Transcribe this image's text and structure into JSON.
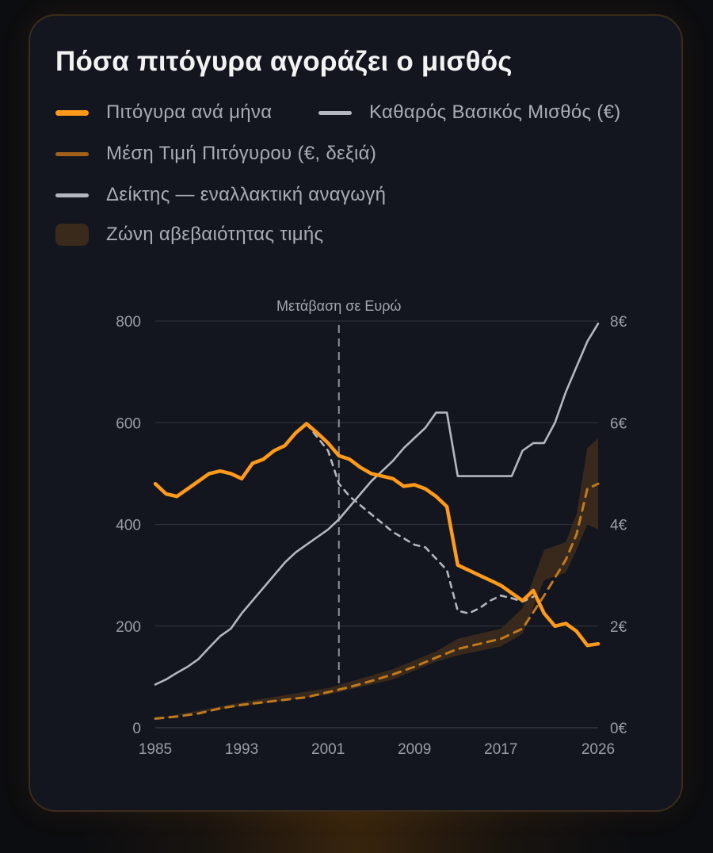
{
  "title": "Πόσα πιτόγυρα αγοράζει ο μισθός",
  "legend": {
    "pitogyra": "Πιτόγυρα ανά μήνα",
    "salary": "Καθαρός Βασικός Μισθός (€)",
    "price": "Μέση Τιμή Πιτόγυρου (€, δεξιά)",
    "alt": "Δείκτης — εναλλακτική αναγωγή",
    "band": "Ζώνη αβεβαιότητας τιμής"
  },
  "colors": {
    "accent": "#ff9a1a",
    "price": "#c07a1e",
    "grey": "#b4b7bd",
    "band": "#3a2a1c",
    "background": "#13161f"
  },
  "chart_data": {
    "type": "line",
    "x_ticks": [
      "1985",
      "1993",
      "2001",
      "2009",
      "2017",
      "2026"
    ],
    "xlim": [
      1985,
      2026
    ],
    "y_left_ticks": [
      "0",
      "200",
      "400",
      "600",
      "800"
    ],
    "ylim_left": [
      0,
      800
    ],
    "y_right_ticks": [
      "0€",
      "2€",
      "4€",
      "6€",
      "8€"
    ],
    "ylim_right": [
      0,
      8
    ],
    "annotation": {
      "label": "Μετάβαση σε Ευρώ",
      "x": 2002
    },
    "grid": true,
    "series": [
      {
        "name": "Πιτόγυρα ανά μήνα",
        "axis": "left",
        "style": "solid",
        "points": [
          [
            1985,
            480
          ],
          [
            1986,
            460
          ],
          [
            1987,
            455
          ],
          [
            1988,
            470
          ],
          [
            1989,
            485
          ],
          [
            1990,
            500
          ],
          [
            1991,
            505
          ],
          [
            1992,
            500
          ],
          [
            1993,
            490
          ],
          [
            1994,
            520
          ],
          [
            1995,
            528
          ],
          [
            1996,
            545
          ],
          [
            1997,
            555
          ],
          [
            1998,
            580
          ],
          [
            1999,
            598
          ],
          [
            2000,
            580
          ],
          [
            2001,
            560
          ],
          [
            2002,
            535
          ],
          [
            2003,
            528
          ],
          [
            2004,
            512
          ],
          [
            2005,
            500
          ],
          [
            2006,
            495
          ],
          [
            2007,
            490
          ],
          [
            2008,
            475
          ],
          [
            2009,
            478
          ],
          [
            2010,
            470
          ],
          [
            2011,
            455
          ],
          [
            2012,
            435
          ],
          [
            2013,
            320
          ],
          [
            2014,
            310
          ],
          [
            2015,
            300
          ],
          [
            2016,
            290
          ],
          [
            2017,
            280
          ],
          [
            2018,
            265
          ],
          [
            2019,
            250
          ],
          [
            2020,
            270
          ],
          [
            2021,
            225
          ],
          [
            2022,
            200
          ],
          [
            2023,
            205
          ],
          [
            2024,
            190
          ],
          [
            2025,
            162
          ],
          [
            2026,
            165
          ]
        ]
      },
      {
        "name": "Καθαρός Βασικός Μισθός (€)",
        "axis": "left",
        "style": "solid",
        "points": [
          [
            1985,
            85
          ],
          [
            1986,
            95
          ],
          [
            1987,
            108
          ],
          [
            1988,
            120
          ],
          [
            1989,
            135
          ],
          [
            1990,
            158
          ],
          [
            1991,
            180
          ],
          [
            1992,
            195
          ],
          [
            1993,
            225
          ],
          [
            1994,
            250
          ],
          [
            1995,
            275
          ],
          [
            1996,
            300
          ],
          [
            1997,
            325
          ],
          [
            1998,
            345
          ],
          [
            1999,
            360
          ],
          [
            2000,
            375
          ],
          [
            2001,
            390
          ],
          [
            2002,
            410
          ],
          [
            2003,
            435
          ],
          [
            2004,
            460
          ],
          [
            2005,
            485
          ],
          [
            2006,
            505
          ],
          [
            2007,
            525
          ],
          [
            2008,
            550
          ],
          [
            2009,
            570
          ],
          [
            2010,
            590
          ],
          [
            2011,
            620
          ],
          [
            2012,
            620
          ],
          [
            2013,
            495
          ],
          [
            2014,
            495
          ],
          [
            2015,
            495
          ],
          [
            2016,
            495
          ],
          [
            2017,
            495
          ],
          [
            2018,
            495
          ],
          [
            2019,
            545
          ],
          [
            2020,
            560
          ],
          [
            2021,
            560
          ],
          [
            2022,
            600
          ],
          [
            2023,
            660
          ],
          [
            2024,
            710
          ],
          [
            2025,
            760
          ],
          [
            2026,
            795
          ]
        ]
      },
      {
        "name": "Μέση Τιμή Πιτόγυρου (€, δεξιά)",
        "axis": "right",
        "style": "dashed",
        "points": [
          [
            1985,
            0.18
          ],
          [
            1987,
            0.22
          ],
          [
            1989,
            0.28
          ],
          [
            1991,
            0.38
          ],
          [
            1993,
            0.45
          ],
          [
            1995,
            0.5
          ],
          [
            1997,
            0.55
          ],
          [
            1999,
            0.6
          ],
          [
            2001,
            0.7
          ],
          [
            2003,
            0.8
          ],
          [
            2005,
            0.92
          ],
          [
            2007,
            1.05
          ],
          [
            2009,
            1.2
          ],
          [
            2011,
            1.38
          ],
          [
            2013,
            1.55
          ],
          [
            2015,
            1.65
          ],
          [
            2017,
            1.75
          ],
          [
            2019,
            1.95
          ],
          [
            2021,
            2.6
          ],
          [
            2023,
            3.3
          ],
          [
            2024,
            3.8
          ],
          [
            2025,
            4.7
          ],
          [
            2026,
            4.8
          ]
        ]
      },
      {
        "name": "Δείκτης — εναλλακτική αναγωγή",
        "axis": "left",
        "style": "dashed",
        "points": [
          [
            1999,
            598
          ],
          [
            2001,
            545
          ],
          [
            2002,
            480
          ],
          [
            2003,
            455
          ],
          [
            2005,
            420
          ],
          [
            2007,
            385
          ],
          [
            2009,
            360
          ],
          [
            2010,
            355
          ],
          [
            2012,
            310
          ],
          [
            2013,
            230
          ],
          [
            2014,
            225
          ],
          [
            2015,
            235
          ],
          [
            2016,
            250
          ],
          [
            2017,
            260
          ],
          [
            2018,
            255
          ],
          [
            2019,
            248
          ],
          [
            2020,
            258
          ]
        ]
      }
    ],
    "band": {
      "name": "Ζώνη αβεβαιότητας τιμής",
      "axis": "right",
      "points": [
        [
          1985,
          0.18,
          0.18
        ],
        [
          1993,
          0.42,
          0.5
        ],
        [
          2001,
          0.65,
          0.78
        ],
        [
          2007,
          0.95,
          1.15
        ],
        [
          2011,
          1.3,
          1.5
        ],
        [
          2013,
          1.42,
          1.75
        ],
        [
          2017,
          1.6,
          1.95
        ],
        [
          2019,
          1.85,
          2.35
        ],
        [
          2021,
          2.9,
          3.5
        ],
        [
          2023,
          3.05,
          3.65
        ],
        [
          2024,
          3.5,
          4.2
        ],
        [
          2025,
          4.0,
          5.5
        ],
        [
          2026,
          3.9,
          5.7
        ]
      ]
    }
  }
}
